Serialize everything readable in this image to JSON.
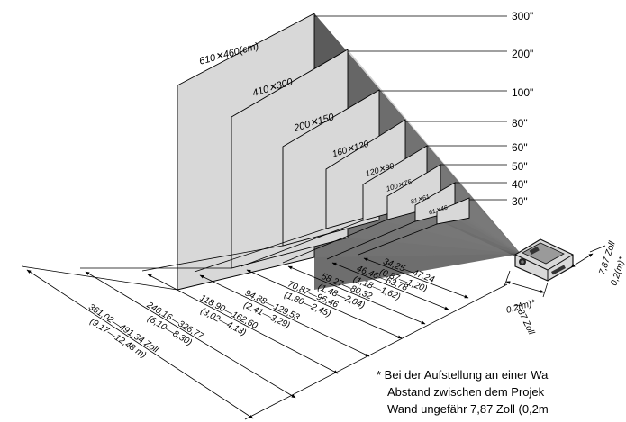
{
  "screen_sizes": [
    {
      "size_label": "300\"",
      "dims_label": "610✕460(cm)",
      "distance": "361,02—491,34 Zoll",
      "distance_m": "(9,17—12,48 m)"
    },
    {
      "size_label": "200\"",
      "dims_label": "410✕300",
      "distance": "240,16—326,77",
      "distance_m": "(6,10—8,30)"
    },
    {
      "size_label": "100\"",
      "dims_label": "200✕150",
      "distance": "118,90—162,60",
      "distance_m": "(3,02—4,13)"
    },
    {
      "size_label": "80\"",
      "dims_label": "160✕120",
      "distance": "94,88—129,53",
      "distance_m": "(2,41—3,29)"
    },
    {
      "size_label": "60\"",
      "dims_label": "120✕90",
      "distance": "70,87—96,46",
      "distance_m": "(1,80—2,45)"
    },
    {
      "size_label": "50\"",
      "dims_label": "100✕75",
      "distance": "58,27—80,32",
      "distance_m": "(1,48—2,04)"
    },
    {
      "size_label": "40\"",
      "dims_label": "81✕61",
      "distance": "46,46—63,78",
      "distance_m": "(1,18—1,62)"
    },
    {
      "size_label": "30\"",
      "dims_label": "61✕46",
      "distance": "34,25—47,24",
      "distance_m": "(0,87—1,20)"
    }
  ],
  "wall_offset_front": {
    "line1": "7,87 Zoll",
    "line2": "0,2(m)*"
  },
  "wall_offset_side": {
    "line1": "7,87 Zoll",
    "line2": "0,2(m)*"
  },
  "footnote": {
    "line1": "* Bei der Aufstellung an einer Wa",
    "line2": "Abstand zwischen dem Projek",
    "line3": "Wand ungefähr 7,87 Zoll (0,2m"
  }
}
